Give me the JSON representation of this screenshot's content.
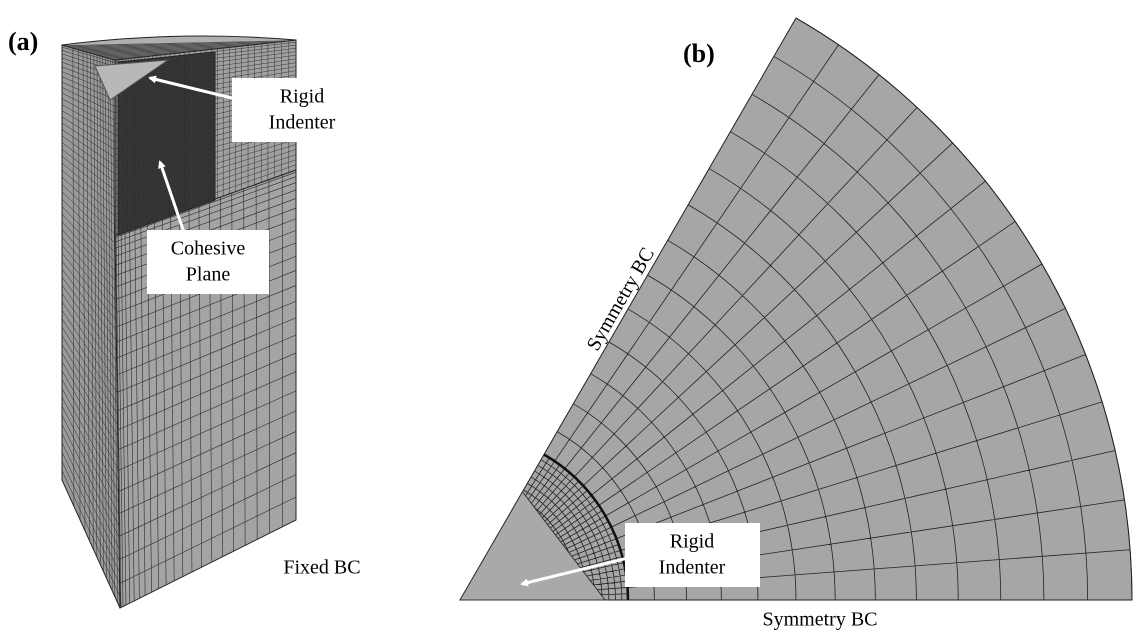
{
  "panel_a": {
    "label": "(a)",
    "rigid_indenter": [
      "Rigid",
      "Indenter"
    ],
    "cohesive_plane": [
      "Cohesive",
      "Plane"
    ],
    "fixed_bc": "Fixed BC"
  },
  "panel_b": {
    "label": "(b)",
    "symmetry_bc_side": "Symmetry BC",
    "symmetry_bc_bottom": "Symmetry BC",
    "rigid_indenter": [
      "Rigid",
      "Indenter"
    ]
  }
}
